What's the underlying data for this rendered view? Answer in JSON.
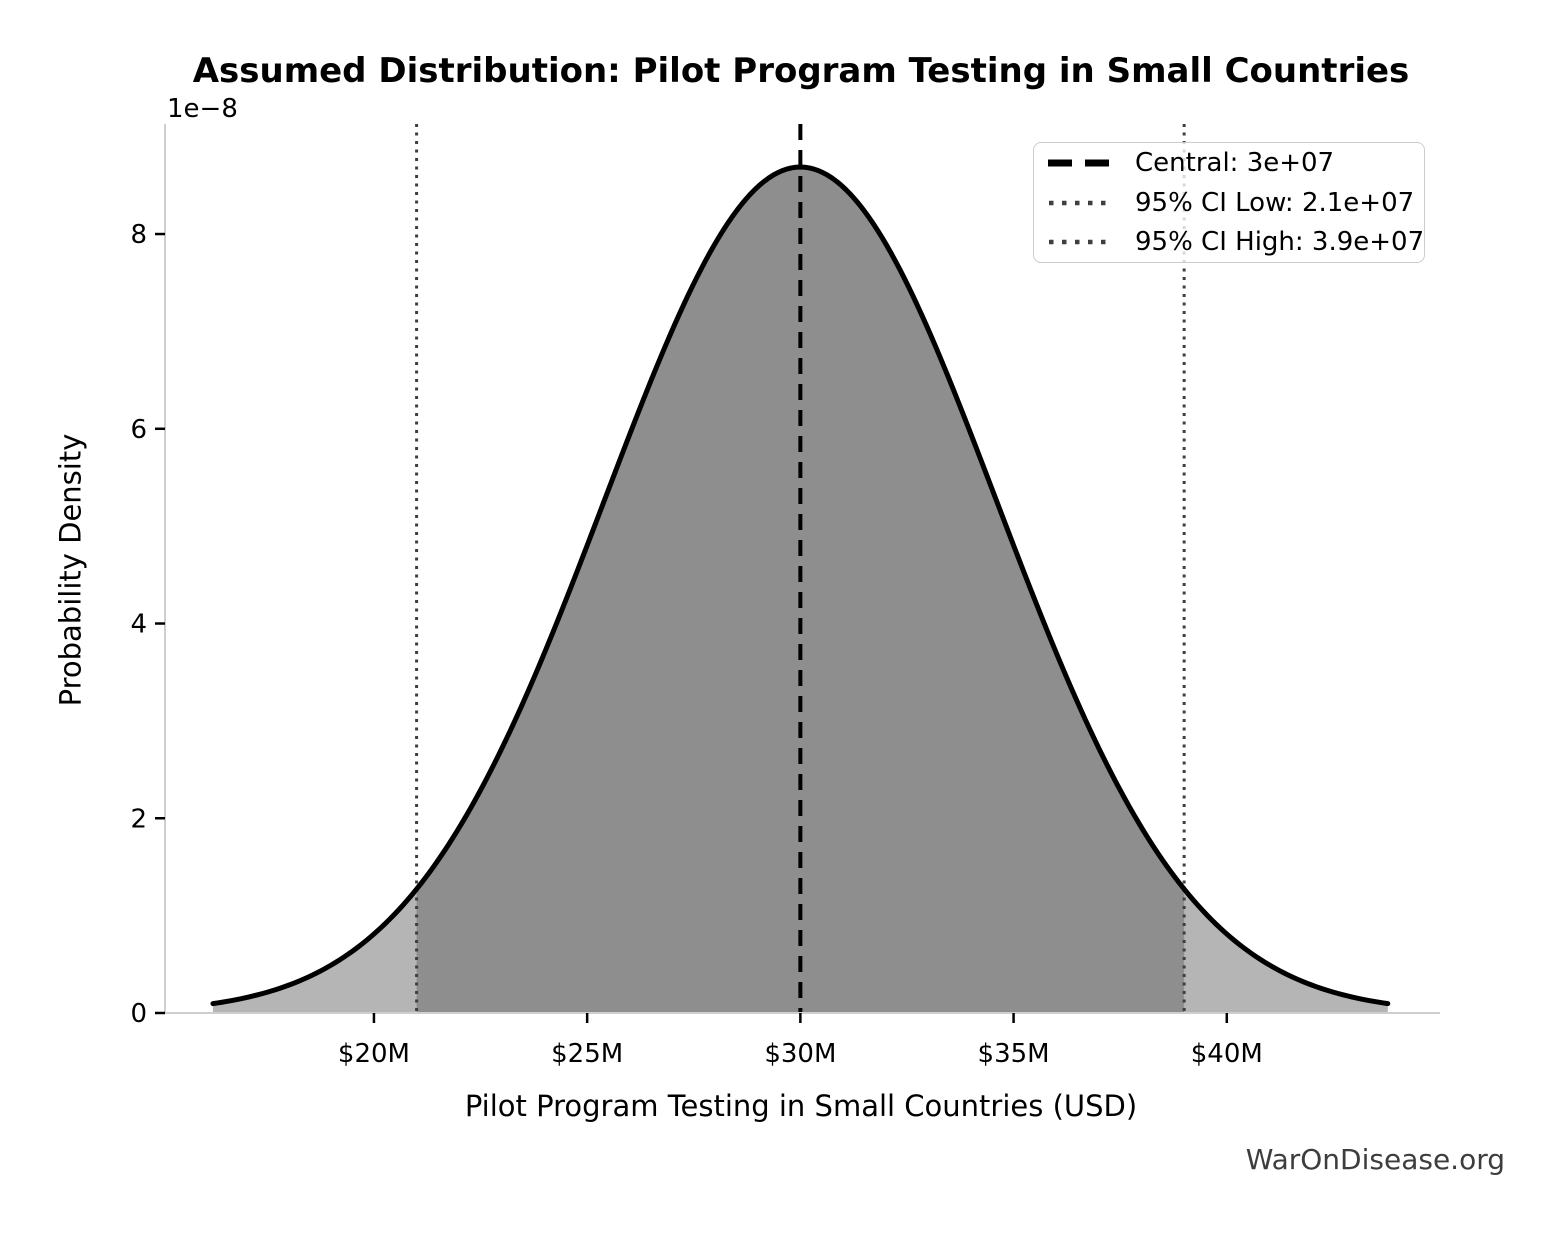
{
  "figure": {
    "title": "Assumed Distribution: Pilot Program Testing in Small Countries",
    "watermark": "WarOnDisease.org"
  },
  "chart_data": {
    "type": "area",
    "subtype": "normal-distribution-density",
    "title": "Assumed Distribution: Pilot Program Testing in Small Countries",
    "xlabel": "Pilot Program Testing in Small Countries (USD)",
    "ylabel": "Probability Density",
    "y_offset_label": "1e−8",
    "central": 30000000,
    "ci_level": "95%",
    "ci_low": 21000000,
    "ci_high": 39000000,
    "sigma": 4591900,
    "peak_density": 8.69e-08,
    "curve_x_range": [
      16224300,
      43775700
    ],
    "xlim": [
      15100000,
      45000000
    ],
    "ylim": [
      0,
      9.13e-08
    ],
    "grid": false,
    "x_ticks": [
      {
        "value": 20000000,
        "label": "$20M"
      },
      {
        "value": 25000000,
        "label": "$25M"
      },
      {
        "value": 30000000,
        "label": "$30M"
      },
      {
        "value": 35000000,
        "label": "$35M"
      },
      {
        "value": 40000000,
        "label": "$40M"
      }
    ],
    "y_ticks": [
      {
        "value": 0,
        "label": "0"
      },
      {
        "value": 2e-08,
        "label": "2"
      },
      {
        "value": 4e-08,
        "label": "4"
      },
      {
        "value": 6e-08,
        "label": "6"
      },
      {
        "value": 8e-08,
        "label": "8"
      }
    ],
    "curve_samples": {
      "x_millions": [
        16.2,
        18,
        20,
        22,
        24,
        26,
        28,
        30,
        32,
        34,
        36,
        38,
        40,
        42,
        43.8
      ],
      "density_1e8": [
        0.1,
        0.29,
        0.81,
        1.9,
        3.7,
        5.95,
        7.9,
        8.69,
        7.9,
        5.95,
        3.7,
        1.9,
        0.81,
        0.29,
        0.1
      ]
    },
    "legend": {
      "position": "upper right",
      "entries": [
        {
          "label": "Central: 3e+07",
          "line_style": "dashed",
          "color": "#000000"
        },
        {
          "label": "95% CI Low: 2.1e+07",
          "line_style": "dotted",
          "color": "#3f3f3f"
        },
        {
          "label": "95% CI High: 3.9e+07",
          "line_style": "dotted",
          "color": "#3f3f3f"
        }
      ]
    },
    "colors": {
      "curve": "#000000",
      "fill_light": "#b5b5b5",
      "fill_dark": "#8e8e8e",
      "central_line": "#000000",
      "ci_line": "#3f3f3f",
      "spine": "#cfcfcf",
      "tick": "#000000",
      "tick_label": "#000000",
      "watermark": "#3d3d3d"
    }
  }
}
